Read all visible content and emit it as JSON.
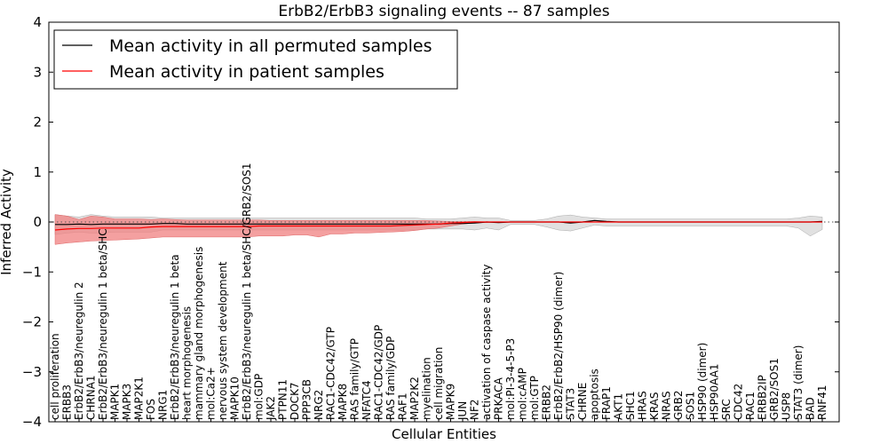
{
  "chart_data": {
    "type": "line",
    "title": "ErbB2/ErbB3 signaling events -- 87 samples",
    "xlabel": "Cellular Entities",
    "ylabel": "Inferred Activity",
    "ylim": [
      -4,
      4
    ],
    "yticks": [
      "−4",
      "−3",
      "−2",
      "−1",
      "0",
      "1",
      "2",
      "3",
      "4"
    ],
    "legend_position": "top-left",
    "colors": {
      "permuted": "#000000",
      "patient": "#ff0000",
      "patient_band": "#f08080",
      "permuted_band": "#c8c8c8",
      "zero_line": "#555555"
    },
    "categories": [
      "cell proliferation",
      "ERBB3",
      "ErbB2/ErbB3/neuregulin 2",
      "CHRNA1",
      "ErbB2/ErbB3/neuregulin 1 beta/SHC",
      "MAPK1",
      "MAPK3",
      "MAP2K1",
      "FOS",
      "NRG1",
      "ErbB2/ErbB3/neuregulin 1 beta",
      "heart morphogenesis",
      "mammary gland morphogenesis",
      "mol:Ca2+",
      "nervous system development",
      "MAPK10",
      "ErbB2/ErbB3/neuregulin 1 beta/SHC/GRB2/SOS1",
      "mol:GDP",
      "JAK2",
      "PTPN11",
      "DOCK7",
      "PPP3CB",
      "NRG2",
      "RAC1-CDC42/GTP",
      "MAPK8",
      "RAS family/GTP",
      "NFATC4",
      "RAC1-CDC42/GDP",
      "RAS family/GDP",
      "RAF1",
      "MAP2K2",
      "myelination",
      "cell migration",
      "MAPK9",
      "JUN",
      "NF2",
      "activation of caspase activity",
      "PRKACA",
      "mol:PI-3-4-5-P3",
      "mol:cAMP",
      "mol:GTP",
      "ERBB2",
      "ErbB2/ErbB2/HSP90 (dimer)",
      "STAT3",
      "CHRNE",
      "apoptosis",
      "FRAP1",
      "AKT1",
      "SHC1",
      "HRAS",
      "KRAS",
      "NRAS",
      "GRB2",
      "SOS1",
      "HSP90 (dimer)",
      "HSP90AA1",
      "SRC",
      "CDC42",
      "RAC1",
      "ERBB2IP",
      "GRB2/SOS1",
      "USP8",
      "STAT3 (dimer)",
      "BAD",
      "RNF41"
    ],
    "series": [
      {
        "name": "Mean activity in all permuted samples",
        "values": [
          -0.05,
          -0.05,
          -0.04,
          -0.05,
          -0.04,
          -0.04,
          -0.04,
          -0.04,
          -0.04,
          -0.03,
          -0.03,
          -0.04,
          -0.04,
          -0.04,
          -0.04,
          -0.04,
          -0.04,
          -0.04,
          -0.04,
          -0.04,
          -0.04,
          -0.04,
          -0.04,
          -0.04,
          -0.04,
          -0.04,
          -0.04,
          -0.04,
          -0.04,
          -0.04,
          -0.04,
          -0.04,
          -0.04,
          -0.03,
          -0.03,
          -0.02,
          0.0,
          -0.01,
          0.0,
          0.0,
          0.0,
          0.0,
          0.0,
          -0.02,
          0.0,
          0.03,
          0.01,
          0.0,
          0.0,
          0.0,
          0.0,
          0.0,
          0.0,
          0.0,
          0.0,
          0.0,
          0.0,
          0.0,
          0.0,
          0.0,
          0.0,
          0.0,
          0.0,
          0.0,
          0.01
        ],
        "band_upper": [
          0.15,
          0.12,
          0.1,
          0.15,
          0.12,
          0.1,
          0.1,
          0.1,
          0.1,
          0.08,
          0.08,
          0.08,
          0.08,
          0.08,
          0.08,
          0.08,
          0.08,
          0.08,
          0.08,
          0.08,
          0.08,
          0.08,
          0.08,
          0.08,
          0.08,
          0.08,
          0.08,
          0.08,
          0.08,
          0.08,
          0.08,
          0.06,
          0.06,
          0.06,
          0.08,
          0.1,
          0.08,
          0.08,
          0.03,
          0.03,
          0.03,
          0.06,
          0.12,
          0.14,
          0.1,
          0.08,
          0.06,
          0.06,
          0.06,
          0.06,
          0.06,
          0.06,
          0.06,
          0.06,
          0.06,
          0.06,
          0.06,
          0.06,
          0.06,
          0.06,
          0.06,
          0.06,
          0.08,
          0.12,
          0.1
        ],
        "band_lower": [
          -0.25,
          -0.22,
          -0.2,
          -0.22,
          -0.22,
          -0.2,
          -0.2,
          -0.2,
          -0.2,
          -0.16,
          -0.16,
          -0.16,
          -0.16,
          -0.16,
          -0.16,
          -0.16,
          -0.16,
          -0.16,
          -0.16,
          -0.16,
          -0.16,
          -0.16,
          -0.16,
          -0.16,
          -0.16,
          -0.16,
          -0.16,
          -0.16,
          -0.16,
          -0.16,
          -0.16,
          -0.14,
          -0.14,
          -0.14,
          -0.14,
          -0.16,
          -0.12,
          -0.16,
          -0.05,
          -0.05,
          -0.05,
          -0.1,
          -0.16,
          -0.18,
          -0.12,
          -0.06,
          -0.08,
          -0.08,
          -0.08,
          -0.08,
          -0.08,
          -0.08,
          -0.08,
          -0.08,
          -0.08,
          -0.08,
          -0.08,
          -0.08,
          -0.08,
          -0.08,
          -0.08,
          -0.08,
          -0.12,
          -0.28,
          -0.15
        ]
      },
      {
        "name": "Mean activity in patient samples",
        "values": [
          -0.16,
          -0.14,
          -0.13,
          -0.13,
          -0.12,
          -0.12,
          -0.12,
          -0.12,
          -0.1,
          -0.09,
          -0.09,
          -0.09,
          -0.09,
          -0.09,
          -0.09,
          -0.09,
          -0.09,
          -0.08,
          -0.08,
          -0.08,
          -0.08,
          -0.08,
          -0.08,
          -0.08,
          -0.08,
          -0.08,
          -0.08,
          -0.08,
          -0.08,
          -0.07,
          -0.06,
          -0.05,
          -0.04,
          -0.02,
          -0.01,
          0.0,
          0.0,
          0.0,
          0.0,
          0.0,
          0.0,
          0.0,
          0.0,
          0.0,
          0.0,
          0.0,
          0.0,
          0.0,
          0.0,
          0.0,
          0.0,
          0.0,
          0.0,
          0.0,
          0.0,
          0.0,
          0.0,
          0.0,
          0.0,
          0.0,
          0.0,
          0.0,
          0.0,
          0.0,
          0.0
        ],
        "band_upper": [
          0.15,
          0.12,
          0.05,
          0.12,
          0.1,
          0.06,
          0.06,
          0.06,
          0.05,
          0.06,
          0.05,
          0.04,
          0.04,
          0.04,
          0.04,
          0.04,
          0.04,
          0.04,
          0.03,
          0.03,
          0.03,
          0.03,
          0.03,
          0.03,
          0.03,
          0.03,
          0.03,
          0.03,
          0.03,
          0.03,
          0.03,
          0.03,
          0.02,
          0.01,
          0.01,
          0.01,
          0.0,
          0.0,
          0.0,
          0.0,
          0.0,
          0.0,
          0.0,
          0.0,
          0.0,
          0.0,
          0.0,
          0.0,
          0.0,
          0.0,
          0.0,
          0.0,
          0.0,
          0.0,
          0.0,
          0.0,
          0.0,
          0.0,
          0.0,
          0.0,
          0.0,
          0.0,
          0.0,
          0.0,
          0.0
        ],
        "band_lower": [
          -0.45,
          -0.42,
          -0.4,
          -0.38,
          -0.37,
          -0.36,
          -0.35,
          -0.34,
          -0.32,
          -0.3,
          -0.3,
          -0.3,
          -0.3,
          -0.3,
          -0.3,
          -0.3,
          -0.3,
          -0.28,
          -0.28,
          -0.28,
          -0.26,
          -0.26,
          -0.3,
          -0.24,
          -0.24,
          -0.22,
          -0.22,
          -0.21,
          -0.2,
          -0.19,
          -0.17,
          -0.14,
          -0.12,
          -0.08,
          -0.04,
          -0.02,
          -0.01,
          0.0,
          0.0,
          0.0,
          0.0,
          0.0,
          0.0,
          0.0,
          0.0,
          0.0,
          0.0,
          0.0,
          0.0,
          0.0,
          0.0,
          0.0,
          0.0,
          0.0,
          0.0,
          0.0,
          0.0,
          0.0,
          0.0,
          0.0,
          0.0,
          0.0,
          0.0,
          0.0,
          0.0
        ]
      }
    ]
  }
}
